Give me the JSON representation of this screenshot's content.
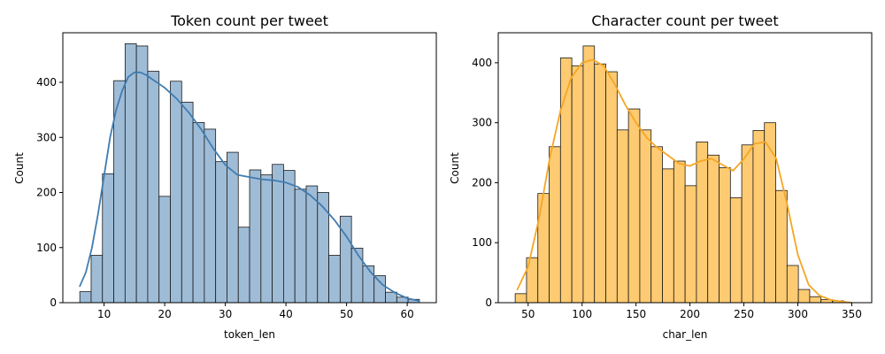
{
  "chart_data": [
    {
      "type": "bar",
      "title": "Token count per tweet",
      "xlabel": "token_len",
      "ylabel": "Count",
      "xlim": [
        3.2,
        64.8
      ],
      "ylim": [
        0,
        490
      ],
      "xticks": [
        10,
        20,
        30,
        40,
        50,
        60
      ],
      "yticks": [
        0,
        100,
        200,
        300,
        400
      ],
      "bins": {
        "start": 6,
        "width": 1.867,
        "counts": [
          20,
          86,
          234,
          403,
          470,
          466,
          420,
          193,
          402,
          364,
          327,
          315,
          256,
          273,
          137,
          241,
          232,
          251,
          240,
          206,
          212,
          200,
          86,
          157,
          99,
          67,
          49,
          19,
          10,
          6
        ]
      },
      "kde": {
        "x": [
          6,
          7,
          8,
          9,
          10,
          11,
          12,
          13,
          14,
          15,
          16,
          17,
          18,
          19,
          20,
          22,
          24,
          26,
          28,
          30,
          32,
          34,
          36,
          38,
          40,
          42,
          44,
          46,
          48,
          50,
          52,
          54,
          56,
          58,
          60,
          62
        ],
        "y": [
          30,
          55,
          100,
          160,
          230,
          300,
          350,
          385,
          410,
          418,
          418,
          413,
          405,
          398,
          390,
          370,
          345,
          315,
          280,
          250,
          232,
          228,
          224,
          222,
          218,
          210,
          195,
          175,
          150,
          120,
          85,
          55,
          32,
          18,
          8,
          3
        ]
      },
      "bar_fill": "#9fbcd7",
      "line_color": "#3f7cb0"
    },
    {
      "type": "bar",
      "title": "Character count per tweet",
      "xlabel": "char_len",
      "ylabel": "Count",
      "xlim": [
        22.3,
        368.5
      ],
      "ylim": [
        0,
        450
      ],
      "xticks": [
        50,
        100,
        150,
        200,
        250,
        300,
        350
      ],
      "yticks": [
        0,
        100,
        200,
        300,
        400
      ],
      "bins": {
        "start": 38,
        "width": 10.5,
        "counts": [
          15,
          75,
          182,
          260,
          408,
          395,
          428,
          398,
          385,
          288,
          323,
          288,
          260,
          223,
          236,
          195,
          268,
          246,
          225,
          175,
          263,
          287,
          300,
          187,
          62,
          22,
          10,
          5,
          3,
          0
        ]
      },
      "kde": {
        "x": [
          40,
          50,
          60,
          70,
          80,
          90,
          100,
          110,
          120,
          130,
          140,
          150,
          160,
          170,
          180,
          190,
          200,
          210,
          220,
          230,
          240,
          250,
          260,
          270,
          280,
          290,
          300,
          310,
          320,
          330,
          340,
          350
        ],
        "y": [
          22,
          60,
          140,
          240,
          320,
          375,
          400,
          405,
          395,
          365,
          330,
          300,
          275,
          258,
          245,
          232,
          228,
          236,
          240,
          230,
          220,
          240,
          265,
          268,
          240,
          165,
          80,
          30,
          12,
          5,
          2,
          0
        ]
      },
      "bar_fill": "#fecb72",
      "line_color": "#f5a623"
    }
  ]
}
